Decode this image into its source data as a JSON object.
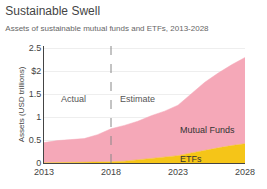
{
  "chart_data": {
    "type": "area",
    "title": "Sustainable Swell",
    "subtitle": "Assets of sustainable mutual funds and ETFs, 2013-2028",
    "y_label": "Assets (USD trillions)",
    "stacked": true,
    "grid": true,
    "x": [
      2013,
      2014,
      2015,
      2016,
      2017,
      2018,
      2019,
      2020,
      2021,
      2022,
      2023,
      2024,
      2025,
      2026,
      2027,
      2028
    ],
    "series": [
      {
        "name": "ETFs",
        "color": "#f5c518",
        "values": [
          0.005,
          0.008,
          0.01,
          0.012,
          0.018,
          0.025,
          0.04,
          0.07,
          0.1,
          0.13,
          0.16,
          0.22,
          0.28,
          0.33,
          0.38,
          0.42
        ]
      },
      {
        "name": "Mutual Funds",
        "color": "#f5a8b8",
        "values": [
          0.44,
          0.48,
          0.5,
          0.52,
          0.6,
          0.72,
          0.78,
          0.84,
          0.93,
          1.0,
          1.1,
          1.28,
          1.48,
          1.63,
          1.76,
          1.88
        ]
      }
    ],
    "vlines": [
      2018
    ],
    "annotations": [
      {
        "text": "Actual",
        "x": 2015.2,
        "y": 1.25
      },
      {
        "text": "Estimate",
        "x": 2020.0,
        "y": 1.25
      }
    ],
    "xlim": [
      2013,
      2028
    ],
    "xticks": [
      2013,
      2018,
      2023,
      2028
    ],
    "ylim": [
      0,
      2.55
    ],
    "yticks": [
      0,
      0.5,
      1,
      1.5,
      {
        "value": 2,
        "label": "$2"
      },
      2.5
    ]
  }
}
